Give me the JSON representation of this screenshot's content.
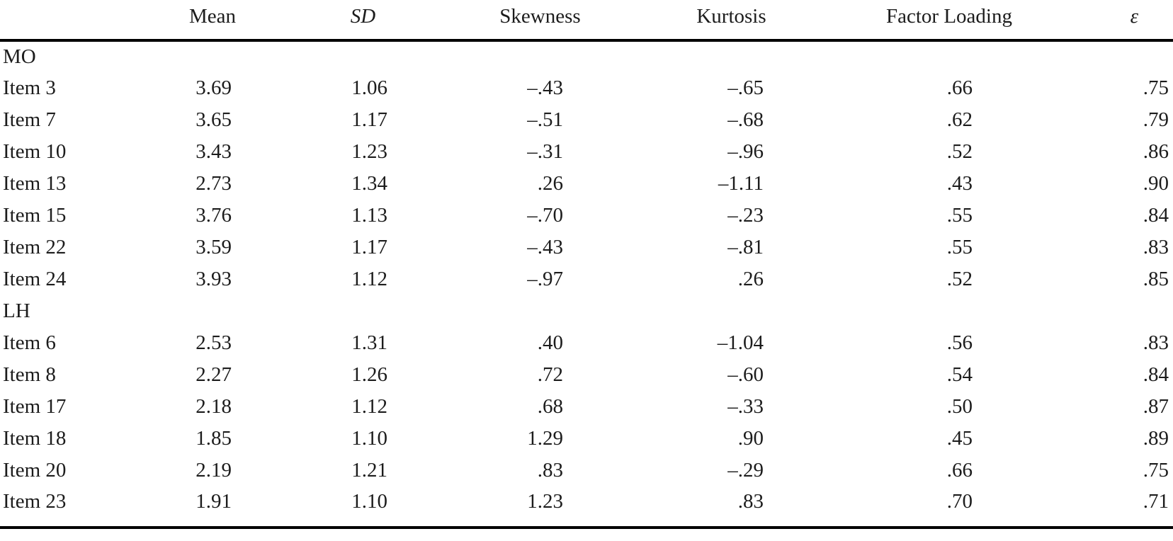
{
  "colors": {
    "background": "#ffffff",
    "text": "#1c1c1c",
    "rule": "#000000"
  },
  "table": {
    "columns": [
      "",
      "Mean",
      "SD",
      "Skewness",
      "Kurtosis",
      "Factor Loading",
      "ε"
    ],
    "sections": [
      {
        "label": "MO",
        "rows": [
          {
            "label": "Item 3",
            "values": [
              "3.69",
              "1.06",
              "–.43",
              "–.65",
              ".66",
              ".75"
            ]
          },
          {
            "label": "Item 7",
            "values": [
              "3.65",
              "1.17",
              "–.51",
              "–.68",
              ".62",
              ".79"
            ]
          },
          {
            "label": "Item 10",
            "values": [
              "3.43",
              "1.23",
              "–.31",
              "–.96",
              ".52",
              ".86"
            ]
          },
          {
            "label": "Item 13",
            "values": [
              "2.73",
              "1.34",
              ".26",
              "–1.11",
              ".43",
              ".90"
            ]
          },
          {
            "label": "Item 15",
            "values": [
              "3.76",
              "1.13",
              "–.70",
              "–.23",
              ".55",
              ".84"
            ]
          },
          {
            "label": "Item 22",
            "values": [
              "3.59",
              "1.17",
              "–.43",
              "–.81",
              ".55",
              ".83"
            ]
          },
          {
            "label": "Item 24",
            "values": [
              "3.93",
              "1.12",
              "–.97",
              ".26",
              ".52",
              ".85"
            ]
          }
        ]
      },
      {
        "label": "LH",
        "rows": [
          {
            "label": "Item 6",
            "values": [
              "2.53",
              "1.31",
              ".40",
              "–1.04",
              ".56",
              ".83"
            ]
          },
          {
            "label": "Item 8",
            "values": [
              "2.27",
              "1.26",
              ".72",
              "–.60",
              ".54",
              ".84"
            ]
          },
          {
            "label": "Item 17",
            "values": [
              "2.18",
              "1.12",
              ".68",
              "–.33",
              ".50",
              ".87"
            ]
          },
          {
            "label": "Item 18",
            "values": [
              "1.85",
              "1.10",
              "1.29",
              ".90",
              ".45",
              ".89"
            ]
          },
          {
            "label": "Item 20",
            "values": [
              "2.19",
              "1.21",
              ".83",
              "–.29",
              ".66",
              ".75"
            ]
          },
          {
            "label": "Item 23",
            "values": [
              "1.91",
              "1.10",
              "1.23",
              ".83",
              ".70",
              ".71"
            ]
          }
        ]
      }
    ]
  }
}
